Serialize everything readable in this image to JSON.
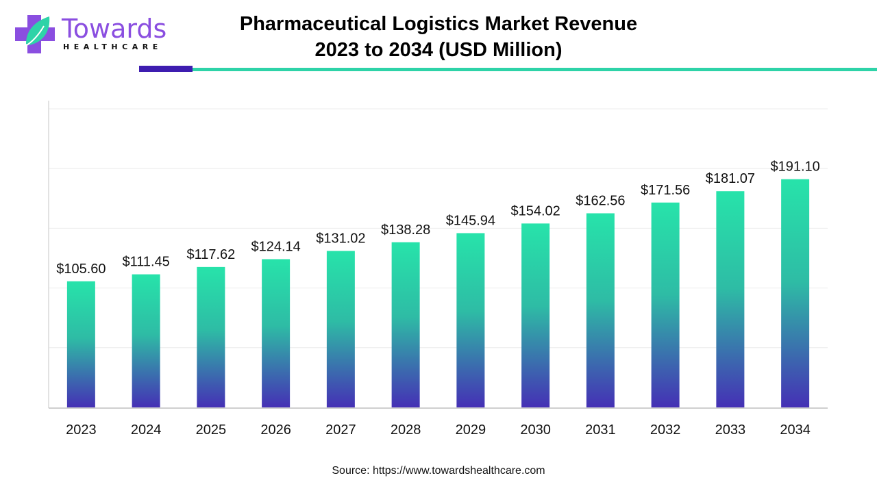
{
  "brand": {
    "name": "Towards",
    "subname": "HEALTHCARE",
    "colors": {
      "purple": "#8a4ee0",
      "teal": "#2ed3a8",
      "dark_purple": "#3e1db0"
    }
  },
  "header": {
    "title_line1": "Pharmaceutical Logistics Market Revenue",
    "title_line2": "2023 to 2034 (USD Million)"
  },
  "source": "Source: https://www.towardshealthcare.com",
  "chart_data": {
    "type": "bar",
    "title": "Pharmaceutical Logistics Market Revenue 2023 to 2034 (USD Million)",
    "xlabel": "",
    "ylabel": "",
    "categories": [
      "2023",
      "2024",
      "2025",
      "2026",
      "2027",
      "2028",
      "2029",
      "2030",
      "2031",
      "2032",
      "2033",
      "2034"
    ],
    "values": [
      105.6,
      111.45,
      117.62,
      124.14,
      131.02,
      138.28,
      145.94,
      154.02,
      162.56,
      171.56,
      181.07,
      191.1
    ],
    "labels": [
      "$105.60",
      "$111.45",
      "$117.62",
      "$124.14",
      "$131.02",
      "$138.28",
      "$145.94",
      "$154.02",
      "$162.56",
      "$171.56",
      "$181.07",
      "$191.10"
    ],
    "ylim": [
      0,
      250
    ],
    "gridlines": [
      50,
      100,
      150,
      200,
      250
    ],
    "grid": true,
    "y_tick_labels_visible": false,
    "legend": "none",
    "bar_gradient": {
      "top": "#27e3aa",
      "bottom": "#4530b5"
    }
  }
}
